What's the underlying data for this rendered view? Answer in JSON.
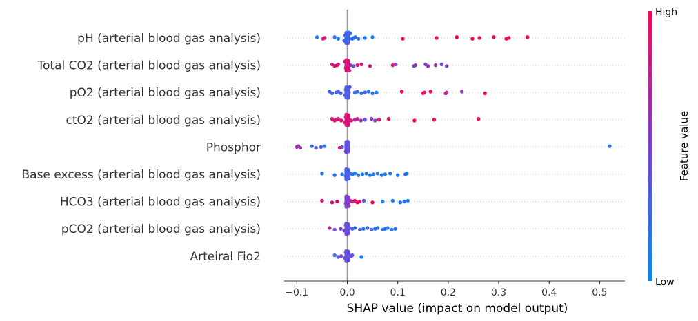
{
  "chart_data": {
    "type": "scatter",
    "subtype": "shap-beeswarm",
    "xlabel": "SHAP value (impact on model output)",
    "xlim": [
      -0.125,
      0.55
    ],
    "xticks": [
      -0.1,
      0.0,
      0.1,
      0.2,
      0.3,
      0.4,
      0.5
    ],
    "xtick_labels": [
      "−0.1",
      "0.0",
      "0.1",
      "0.2",
      "0.3",
      "0.4",
      "0.5"
    ],
    "colorbar": {
      "title": "Feature value",
      "high_label": "High",
      "low_label": "Low",
      "low_color": "#008afb",
      "high_color": "#ff0052"
    },
    "features": [
      {
        "name": "pH (arterial blood gas analysis)",
        "points": [
          [
            -0.06,
            0.1
          ],
          [
            -0.048,
            0.7
          ],
          [
            -0.045,
            0.9
          ],
          [
            -0.025,
            0.2
          ],
          [
            -0.018,
            0.1
          ],
          [
            -0.006,
            0.3
          ],
          [
            -0.004,
            0.2
          ],
          [
            -0.003,
            0.25
          ],
          [
            -0.002,
            0.3
          ],
          [
            -0.001,
            0.35
          ],
          [
            0.0,
            0.3
          ],
          [
            0.001,
            0.35
          ],
          [
            0.002,
            0.3
          ],
          [
            0.003,
            0.2
          ],
          [
            0.004,
            0.25
          ],
          [
            0.006,
            0.2
          ],
          [
            0.01,
            0.15
          ],
          [
            0.013,
            0.1
          ],
          [
            0.016,
            0.2
          ],
          [
            0.022,
            0.1
          ],
          [
            0.035,
            0.1
          ],
          [
            0.05,
            0.1
          ],
          [
            0.11,
            0.95
          ],
          [
            0.177,
            0.95
          ],
          [
            0.217,
            1.0
          ],
          [
            0.248,
            0.95
          ],
          [
            0.262,
            1.0
          ],
          [
            0.29,
            0.95
          ],
          [
            0.315,
            1.0
          ],
          [
            0.32,
            0.95
          ],
          [
            0.357,
            1.0
          ]
        ]
      },
      {
        "name": "Total CO2 (arterial blood gas analysis)",
        "points": [
          [
            -0.03,
            0.85
          ],
          [
            -0.025,
            0.9
          ],
          [
            -0.02,
            0.85
          ],
          [
            -0.018,
            0.85
          ],
          [
            -0.005,
            0.9
          ],
          [
            -0.003,
            0.85
          ],
          [
            -0.002,
            0.85
          ],
          [
            -0.001,
            0.9
          ],
          [
            0.0,
            0.85
          ],
          [
            0.001,
            0.9
          ],
          [
            0.002,
            0.85
          ],
          [
            0.004,
            0.85
          ],
          [
            0.006,
            0.6
          ],
          [
            0.012,
            0.4
          ],
          [
            0.02,
            0.9
          ],
          [
            0.028,
            0.85
          ],
          [
            0.045,
            0.8
          ],
          [
            0.09,
            0.85
          ],
          [
            0.096,
            0.6
          ],
          [
            0.132,
            0.45
          ],
          [
            0.135,
            0.6
          ],
          [
            0.155,
            0.55
          ],
          [
            0.16,
            0.6
          ],
          [
            0.175,
            0.6
          ],
          [
            0.187,
            0.5
          ],
          [
            0.197,
            0.55
          ]
        ]
      },
      {
        "name": "pO2 (arterial blood gas analysis)",
        "points": [
          [
            -0.035,
            0.25
          ],
          [
            -0.03,
            0.3
          ],
          [
            -0.022,
            0.3
          ],
          [
            -0.018,
            0.35
          ],
          [
            -0.013,
            0.25
          ],
          [
            -0.005,
            0.3
          ],
          [
            -0.003,
            0.3
          ],
          [
            -0.002,
            0.35
          ],
          [
            -0.001,
            0.3
          ],
          [
            0.0,
            0.35
          ],
          [
            0.001,
            0.3
          ],
          [
            0.002,
            0.35
          ],
          [
            0.003,
            0.3
          ],
          [
            0.005,
            0.4
          ],
          [
            0.015,
            0.2
          ],
          [
            0.02,
            0.3
          ],
          [
            0.028,
            0.15
          ],
          [
            0.035,
            0.3
          ],
          [
            0.042,
            0.1
          ],
          [
            0.05,
            0.2
          ],
          [
            0.058,
            0.1
          ],
          [
            0.108,
            0.95
          ],
          [
            0.15,
            0.9
          ],
          [
            0.153,
            0.95
          ],
          [
            0.165,
            0.95
          ],
          [
            0.195,
            0.7
          ],
          [
            0.197,
            0.75
          ],
          [
            0.227,
            0.6
          ],
          [
            0.273,
            0.95
          ]
        ]
      },
      {
        "name": "ctO2 (arterial blood gas analysis)",
        "points": [
          [
            -0.03,
            0.85
          ],
          [
            -0.025,
            0.9
          ],
          [
            -0.022,
            0.85
          ],
          [
            -0.018,
            0.85
          ],
          [
            -0.012,
            0.9
          ],
          [
            -0.005,
            0.85
          ],
          [
            -0.003,
            0.9
          ],
          [
            -0.002,
            0.85
          ],
          [
            -0.001,
            0.9
          ],
          [
            0.0,
            0.85
          ],
          [
            0.001,
            0.9
          ],
          [
            0.002,
            0.85
          ],
          [
            0.004,
            0.85
          ],
          [
            0.008,
            0.8
          ],
          [
            0.015,
            0.7
          ],
          [
            0.02,
            0.85
          ],
          [
            0.027,
            0.6
          ],
          [
            0.035,
            0.4
          ],
          [
            0.048,
            0.6
          ],
          [
            0.055,
            0.55
          ],
          [
            0.063,
            0.9
          ],
          [
            0.082,
            0.95
          ],
          [
            0.133,
            1.0
          ],
          [
            0.172,
            1.0
          ],
          [
            0.26,
            1.0
          ]
        ]
      },
      {
        "name": "Phosphor",
        "points": [
          [
            -0.097,
            0.7
          ],
          [
            -0.093,
            0.6
          ],
          [
            -0.1,
            0.65
          ],
          [
            -0.07,
            0.2
          ],
          [
            -0.062,
            0.35
          ],
          [
            -0.052,
            0.3
          ],
          [
            -0.045,
            0.2
          ],
          [
            -0.015,
            0.95
          ],
          [
            -0.01,
            0.3
          ],
          [
            -0.003,
            0.4
          ],
          [
            -0.002,
            0.4
          ],
          [
            -0.001,
            0.45
          ],
          [
            0.0,
            0.4
          ],
          [
            0.001,
            0.45
          ],
          [
            0.002,
            0.4
          ],
          [
            0.52,
            0.15
          ]
        ]
      },
      {
        "name": "Base excess (arterial blood gas analysis)",
        "points": [
          [
            -0.05,
            0.15
          ],
          [
            -0.025,
            0.2
          ],
          [
            -0.01,
            0.1
          ],
          [
            -0.003,
            0.3
          ],
          [
            -0.002,
            0.3
          ],
          [
            -0.001,
            0.35
          ],
          [
            0.0,
            0.3
          ],
          [
            0.001,
            0.35
          ],
          [
            0.002,
            0.3
          ],
          [
            0.003,
            0.3
          ],
          [
            0.006,
            0.2
          ],
          [
            0.01,
            0.15
          ],
          [
            0.015,
            0.1
          ],
          [
            0.022,
            0.15
          ],
          [
            0.03,
            0.1
          ],
          [
            0.038,
            0.15
          ],
          [
            0.045,
            0.1
          ],
          [
            0.052,
            0.15
          ],
          [
            0.06,
            0.1
          ],
          [
            0.068,
            0.15
          ],
          [
            0.075,
            0.1
          ],
          [
            0.085,
            0.15
          ],
          [
            0.1,
            0.1
          ],
          [
            0.115,
            0.15
          ],
          [
            0.118,
            0.1
          ]
        ]
      },
      {
        "name": "HCO3 (arterial blood gas analysis)",
        "points": [
          [
            -0.05,
            0.9
          ],
          [
            -0.03,
            0.8
          ],
          [
            -0.02,
            0.9
          ],
          [
            -0.003,
            0.5
          ],
          [
            -0.002,
            0.5
          ],
          [
            -0.001,
            0.55
          ],
          [
            0.0,
            0.5
          ],
          [
            0.001,
            0.55
          ],
          [
            0.002,
            0.5
          ],
          [
            0.003,
            0.5
          ],
          [
            0.006,
            0.7
          ],
          [
            0.01,
            0.8
          ],
          [
            0.015,
            0.85
          ],
          [
            0.02,
            0.9
          ],
          [
            0.025,
            0.9
          ],
          [
            0.033,
            0.3
          ],
          [
            0.05,
            0.95
          ],
          [
            0.07,
            0.1
          ],
          [
            0.09,
            0.15
          ],
          [
            0.105,
            0.1
          ],
          [
            0.113,
            0.15
          ],
          [
            0.12,
            0.1
          ]
        ]
      },
      {
        "name": "pCO2 (arterial blood gas analysis)",
        "points": [
          [
            -0.035,
            0.7
          ],
          [
            -0.025,
            0.45
          ],
          [
            -0.013,
            0.5
          ],
          [
            -0.006,
            0.55
          ],
          [
            -0.003,
            0.4
          ],
          [
            -0.002,
            0.4
          ],
          [
            -0.001,
            0.45
          ],
          [
            0.0,
            0.4
          ],
          [
            0.001,
            0.45
          ],
          [
            0.002,
            0.4
          ],
          [
            0.004,
            0.35
          ],
          [
            0.01,
            0.3
          ],
          [
            0.015,
            0.25
          ],
          [
            0.025,
            0.3
          ],
          [
            0.032,
            0.2
          ],
          [
            0.04,
            0.25
          ],
          [
            0.048,
            0.3
          ],
          [
            0.055,
            0.15
          ],
          [
            0.06,
            0.2
          ],
          [
            0.07,
            0.15
          ],
          [
            0.075,
            0.2
          ],
          [
            0.08,
            0.15
          ],
          [
            0.088,
            0.1
          ],
          [
            0.095,
            0.15
          ]
        ]
      },
      {
        "name": "Arteiral Fio2",
        "points": [
          [
            -0.025,
            0.3
          ],
          [
            -0.018,
            0.4
          ],
          [
            -0.012,
            0.45
          ],
          [
            -0.005,
            0.4
          ],
          [
            -0.003,
            0.45
          ],
          [
            -0.002,
            0.4
          ],
          [
            -0.001,
            0.45
          ],
          [
            0.0,
            0.4
          ],
          [
            0.001,
            0.45
          ],
          [
            0.002,
            0.4
          ],
          [
            0.004,
            0.45
          ],
          [
            0.008,
            0.4
          ],
          [
            0.01,
            0.35
          ],
          [
            0.028,
            0.1
          ]
        ]
      }
    ]
  }
}
